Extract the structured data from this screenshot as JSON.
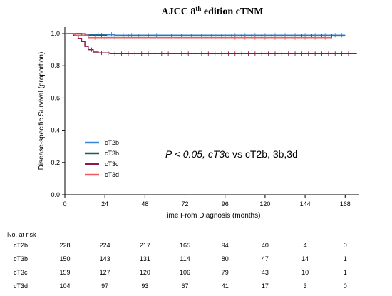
{
  "chart_data": {
    "type": "line",
    "title": "AJCC 8",
    "title_sup": "th",
    "title_rest": " edition cTNM",
    "xlabel": "Time From Diagnosis (months)",
    "ylabel": "Disease-specific Survival (proportion)",
    "xticks": [
      "0",
      "24",
      "48",
      "72",
      "96",
      "120",
      "144",
      "168"
    ],
    "yticks": [
      "0.0",
      "0.2",
      "0.4",
      "0.6",
      "0.8",
      "1.0"
    ],
    "xlim": [
      0,
      176
    ],
    "ylim": [
      0,
      1.04
    ],
    "grid": false,
    "legend_position": "center-left",
    "annotation_parts": [
      {
        "text": "P < 0.05, ",
        "italic": true
      },
      {
        "text": "cT3",
        "italic": true
      },
      {
        "text": "c vs cT2b, 3b,3d",
        "italic": false
      }
    ],
    "series": [
      {
        "name": "cT2b",
        "color": "#3a86d6",
        "points": [
          [
            0,
            1.0
          ],
          [
            12,
            0.995
          ],
          [
            30,
            0.99
          ],
          [
            168,
            0.99
          ]
        ],
        "censors": [
          20,
          28,
          35,
          40,
          45,
          50,
          55,
          60,
          66,
          72,
          78,
          84,
          90,
          96,
          102,
          108,
          114,
          120,
          126,
          132,
          138,
          144,
          150,
          156,
          162,
          166
        ]
      },
      {
        "name": "cT3b",
        "color": "#1f5c5a",
        "points": [
          [
            0,
            1.0
          ],
          [
            10,
            0.99
          ],
          [
            25,
            0.985
          ],
          [
            168,
            0.985
          ]
        ],
        "censors": [
          22,
          30,
          38,
          44,
          50,
          57,
          64,
          70,
          76,
          82,
          88,
          94,
          100,
          106,
          112,
          118,
          124,
          130,
          136,
          142,
          148,
          154,
          160
        ]
      },
      {
        "name": "cT3c",
        "color": "#8b1a4a",
        "points": [
          [
            0,
            1.0
          ],
          [
            5,
            0.99
          ],
          [
            8,
            0.97
          ],
          [
            10,
            0.95
          ],
          [
            12,
            0.92
          ],
          [
            14,
            0.9
          ],
          [
            17,
            0.885
          ],
          [
            20,
            0.88
          ],
          [
            27,
            0.875
          ],
          [
            175,
            0.875
          ]
        ],
        "censors": [
          16,
          22,
          26,
          30,
          34,
          38,
          42,
          46,
          50,
          54,
          58,
          62,
          66,
          70,
          74,
          78,
          82,
          86,
          90,
          94,
          98,
          102,
          106,
          110,
          114,
          118,
          122,
          126,
          130,
          134,
          138,
          142,
          146,
          150,
          154,
          158,
          162,
          166,
          170
        ]
      },
      {
        "name": "cT3d",
        "color": "#f05a5a",
        "points": [
          [
            0,
            1.0
          ],
          [
            6,
            0.99
          ],
          [
            14,
            0.975
          ],
          [
            160,
            0.975
          ]
        ],
        "censors": [
          18,
          24,
          30,
          36,
          42,
          48,
          54,
          60,
          66,
          72,
          78,
          84,
          90,
          96,
          102,
          108,
          114,
          120,
          126,
          132,
          138,
          144,
          150,
          156
        ]
      }
    ]
  },
  "risk_table": {
    "header": "No. at risk",
    "rows": [
      {
        "label": "cT2b",
        "values": [
          "228",
          "224",
          "217",
          "165",
          "94",
          "40",
          "4",
          "0"
        ]
      },
      {
        "label": "cT3b",
        "values": [
          "150",
          "143",
          "131",
          "114",
          "80",
          "47",
          "14",
          "1"
        ]
      },
      {
        "label": "cT3c",
        "values": [
          "159",
          "127",
          "120",
          "106",
          "79",
          "43",
          "10",
          "1"
        ]
      },
      {
        "label": "cT3d",
        "values": [
          "104",
          "97",
          "93",
          "67",
          "41",
          "17",
          "3",
          "0"
        ]
      }
    ]
  }
}
